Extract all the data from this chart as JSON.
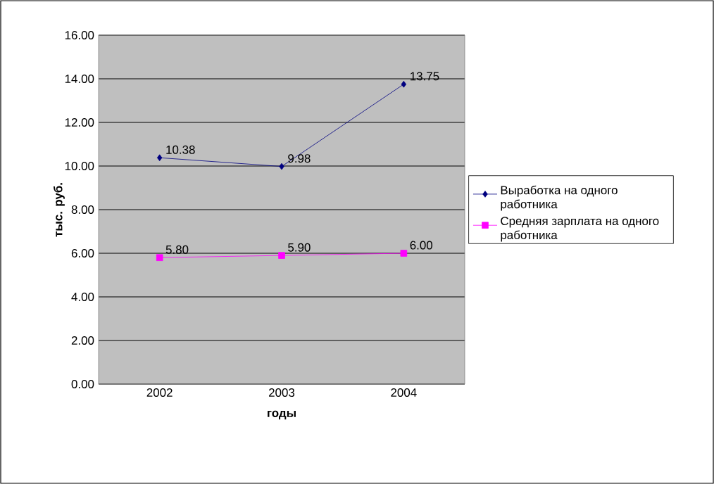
{
  "chart_data": {
    "type": "line",
    "categories": [
      "2002",
      "2003",
      "2004"
    ],
    "series": [
      {
        "name": "Выработка на одного работника",
        "color": "#000080",
        "marker": "diamond",
        "values": [
          10.38,
          9.98,
          13.75
        ],
        "value_labels": [
          "10.38",
          "9.98",
          "13.75"
        ]
      },
      {
        "name": "Средняя зарплата на одного работника",
        "color": "#ff00ff",
        "marker": "square",
        "values": [
          5.8,
          5.9,
          6.0
        ],
        "value_labels": [
          "5.80",
          "5.90",
          "6.00"
        ]
      }
    ],
    "xlabel": "годы",
    "ylabel": "тыс. руб.",
    "ylim": [
      0,
      16
    ],
    "yticks": [
      {
        "value": 0,
        "label": "0.00"
      },
      {
        "value": 2,
        "label": "2.00"
      },
      {
        "value": 4,
        "label": "4.00"
      },
      {
        "value": 6,
        "label": "6.00"
      },
      {
        "value": 8,
        "label": "8.00"
      },
      {
        "value": 10,
        "label": "10.00"
      },
      {
        "value": 12,
        "label": "12.00"
      },
      {
        "value": 14,
        "label": "14.00"
      },
      {
        "value": 16,
        "label": "16.00"
      }
    ],
    "grid": "y",
    "legend": "right"
  }
}
